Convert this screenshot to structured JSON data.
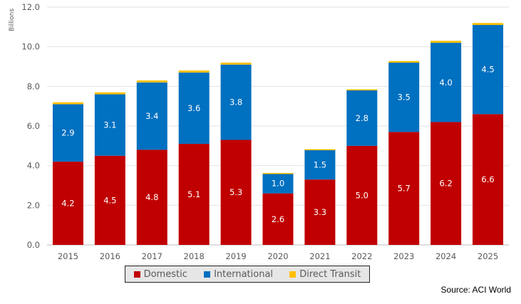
{
  "chart_data": {
    "type": "bar",
    "stacked": true,
    "categories": [
      "2015",
      "2016",
      "2017",
      "2018",
      "2019",
      "2020",
      "2021",
      "2022",
      "2023",
      "2024",
      "2025"
    ],
    "series": [
      {
        "name": "Domestic",
        "color": "#c00000",
        "values": [
          4.2,
          4.5,
          4.8,
          5.1,
          5.3,
          2.6,
          3.3,
          5.0,
          5.7,
          6.2,
          6.6
        ]
      },
      {
        "name": "International",
        "color": "#0070c0",
        "values": [
          2.9,
          3.1,
          3.4,
          3.6,
          3.8,
          1.0,
          1.5,
          2.8,
          3.5,
          4.0,
          4.5
        ]
      },
      {
        "name": "Direct Transit",
        "color": "#ffc000",
        "values": [
          0.1,
          0.1,
          0.1,
          0.1,
          0.1,
          0.03,
          0.03,
          0.05,
          0.08,
          0.1,
          0.1
        ]
      }
    ],
    "ylabel": "Billions",
    "ylim": [
      0,
      12
    ],
    "yticks": [
      "0.0",
      "2.0",
      "4.0",
      "6.0",
      "8.0",
      "10.0",
      "12.0"
    ],
    "grid": true,
    "legend_position": "bottom"
  },
  "source": "Source: ACI World"
}
